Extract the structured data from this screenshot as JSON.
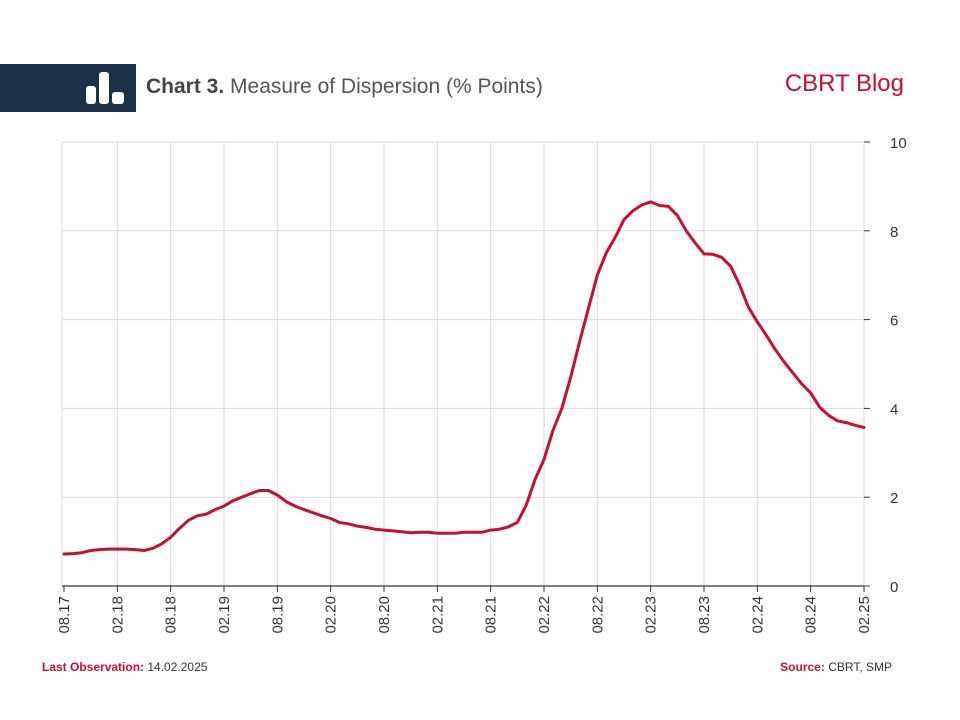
{
  "header": {
    "title_bold": "Chart 3.",
    "title_rest": "Measure of Dispersion (% Points)",
    "brand": "CBRT Blog",
    "logo_icon": "bar-chart-icon",
    "colors": {
      "bar": "#1c3148",
      "accent": "#c8102e"
    }
  },
  "footer": {
    "last_obs_label": "Last Observation:",
    "last_obs_value": "14.02.2025",
    "source_label": "Source:",
    "source_value": "CBRT, SMP"
  },
  "chart_data": {
    "type": "line",
    "title": "Measure of Dispersion (% Points)",
    "xlabel": "",
    "ylabel": "",
    "ylim": [
      0,
      10
    ],
    "yticks": [
      0,
      2,
      4,
      6,
      8,
      10
    ],
    "y_axis_side": "right",
    "grid": true,
    "line_color": "#c8102e",
    "xticks": [
      "08.17",
      "02.18",
      "08.18",
      "02.19",
      "08.19",
      "02.20",
      "08.20",
      "02.21",
      "08.21",
      "02.22",
      "08.22",
      "02.23",
      "08.23",
      "02.24",
      "08.24",
      "02.25"
    ],
    "series": [
      {
        "name": "",
        "values": [
          [
            "08.17",
            0.72
          ],
          [
            "09.17",
            0.73
          ],
          [
            "10.17",
            0.75
          ],
          [
            "11.17",
            0.8
          ],
          [
            "12.17",
            0.82
          ],
          [
            "01.18",
            0.83
          ],
          [
            "02.18",
            0.83
          ],
          [
            "03.18",
            0.83
          ],
          [
            "04.18",
            0.82
          ],
          [
            "05.18",
            0.8
          ],
          [
            "06.18",
            0.85
          ],
          [
            "07.18",
            0.95
          ],
          [
            "08.18",
            1.1
          ],
          [
            "09.18",
            1.3
          ],
          [
            "10.18",
            1.48
          ],
          [
            "11.18",
            1.58
          ],
          [
            "12.18",
            1.62
          ],
          [
            "01.19",
            1.72
          ],
          [
            "02.19",
            1.8
          ],
          [
            "03.19",
            1.92
          ],
          [
            "04.19",
            2.0
          ],
          [
            "05.19",
            2.08
          ],
          [
            "06.19",
            2.15
          ],
          [
            "07.19",
            2.15
          ],
          [
            "08.19",
            2.05
          ],
          [
            "09.19",
            1.9
          ],
          [
            "10.19",
            1.8
          ],
          [
            "11.19",
            1.72
          ],
          [
            "12.19",
            1.65
          ],
          [
            "01.20",
            1.58
          ],
          [
            "02.20",
            1.52
          ],
          [
            "03.20",
            1.43
          ],
          [
            "04.20",
            1.4
          ],
          [
            "05.20",
            1.35
          ],
          [
            "06.20",
            1.32
          ],
          [
            "07.20",
            1.28
          ],
          [
            "08.20",
            1.26
          ],
          [
            "09.20",
            1.24
          ],
          [
            "10.20",
            1.22
          ],
          [
            "11.20",
            1.2
          ],
          [
            "12.20",
            1.21
          ],
          [
            "01.21",
            1.21
          ],
          [
            "02.21",
            1.19
          ],
          [
            "03.21",
            1.19
          ],
          [
            "04.21",
            1.19
          ],
          [
            "05.21",
            1.21
          ],
          [
            "06.21",
            1.21
          ],
          [
            "07.21",
            1.21
          ],
          [
            "08.21",
            1.26
          ],
          [
            "09.21",
            1.28
          ],
          [
            "10.21",
            1.33
          ],
          [
            "11.21",
            1.43
          ],
          [
            "12.21",
            1.82
          ],
          [
            "01.22",
            2.4
          ],
          [
            "02.22",
            2.85
          ],
          [
            "03.22",
            3.5
          ],
          [
            "04.22",
            4.0
          ],
          [
            "05.22",
            4.7
          ],
          [
            "06.22",
            5.5
          ],
          [
            "07.22",
            6.25
          ],
          [
            "08.22",
            7.0
          ],
          [
            "09.22",
            7.5
          ],
          [
            "10.22",
            7.85
          ],
          [
            "11.22",
            8.25
          ],
          [
            "12.22",
            8.45
          ],
          [
            "01.23",
            8.58
          ],
          [
            "02.23",
            8.65
          ],
          [
            "03.23",
            8.57
          ],
          [
            "04.23",
            8.55
          ],
          [
            "05.23",
            8.35
          ],
          [
            "06.23",
            8.0
          ],
          [
            "07.23",
            7.73
          ],
          [
            "08.23",
            7.48
          ],
          [
            "09.23",
            7.47
          ],
          [
            "10.23",
            7.4
          ],
          [
            "11.23",
            7.2
          ],
          [
            "12.23",
            6.78
          ],
          [
            "01.24",
            6.28
          ],
          [
            "02.24",
            5.95
          ],
          [
            "03.24",
            5.65
          ],
          [
            "04.24",
            5.33
          ],
          [
            "05.24",
            5.05
          ],
          [
            "06.24",
            4.8
          ],
          [
            "07.24",
            4.55
          ],
          [
            "08.24",
            4.35
          ],
          [
            "09.24",
            4.03
          ],
          [
            "10.24",
            3.85
          ],
          [
            "11.24",
            3.72
          ],
          [
            "12.24",
            3.68
          ],
          [
            "01.25",
            3.62
          ],
          [
            "02.25",
            3.57
          ]
        ]
      }
    ]
  }
}
